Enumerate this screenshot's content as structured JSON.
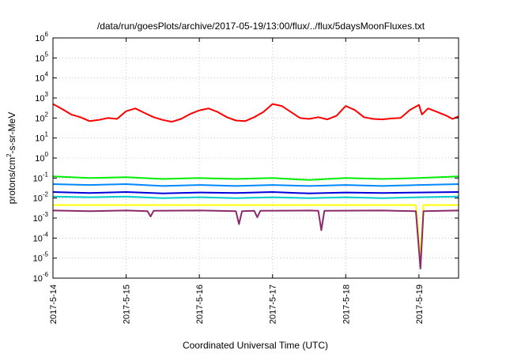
{
  "chart_data": {
    "type": "line",
    "title": "/data/run/goesPlots/archive/2017-05-19/13:00/flux/../flux/5daysMoonFluxes.txt",
    "xlabel": "Coordinated Universal Time (UTC)",
    "ylabel_parts": [
      "protons/cm",
      "2",
      "-s-sr-MeV"
    ],
    "y_scale": "log",
    "ylim": [
      1e-06,
      1000000.0
    ],
    "y_ticks": [
      {
        "value": 1e-06,
        "base": "10",
        "exp": "-6"
      },
      {
        "value": 1e-05,
        "base": "10",
        "exp": "-5"
      },
      {
        "value": 0.0001,
        "base": "10",
        "exp": "-4"
      },
      {
        "value": 0.001,
        "base": "10",
        "exp": "-3"
      },
      {
        "value": 0.01,
        "base": "10",
        "exp": "-2"
      },
      {
        "value": 0.1,
        "base": "10",
        "exp": "-1"
      },
      {
        "value": 1,
        "base": "10",
        "exp": "0"
      },
      {
        "value": 10,
        "base": "10",
        "exp": "1"
      },
      {
        "value": 100,
        "base": "10",
        "exp": "2"
      },
      {
        "value": 1000,
        "base": "10",
        "exp": "3"
      },
      {
        "value": 10000,
        "base": "10",
        "exp": "4"
      },
      {
        "value": 100000,
        "base": "10",
        "exp": "5"
      },
      {
        "value": 1000000,
        "base": "10",
        "exp": "6"
      }
    ],
    "xlim": [
      "2017-05-14T00:00",
      "2017-05-19T13:00"
    ],
    "x_ticks": [
      {
        "date": "2017-05-14T00:00",
        "label": "2017-5-14"
      },
      {
        "date": "2017-05-15T00:00",
        "label": "2017-5-15"
      },
      {
        "date": "2017-05-16T00:00",
        "label": "2017-5-16"
      },
      {
        "date": "2017-05-17T00:00",
        "label": "2017-5-17"
      },
      {
        "date": "2017-05-18T00:00",
        "label": "2017-5-18"
      },
      {
        "date": "2017-05-19T00:00",
        "label": "2017-5-19"
      }
    ],
    "grid": true,
    "series": [
      {
        "color": "#ff0000",
        "points": [
          [
            "2017-05-14T00:00",
            500
          ],
          [
            "2017-05-14T03:00",
            280
          ],
          [
            "2017-05-14T06:00",
            150
          ],
          [
            "2017-05-14T09:00",
            110
          ],
          [
            "2017-05-14T12:00",
            70
          ],
          [
            "2017-05-14T15:00",
            80
          ],
          [
            "2017-05-14T18:00",
            100
          ],
          [
            "2017-05-14T21:00",
            90
          ],
          [
            "2017-05-15T00:00",
            220
          ],
          [
            "2017-05-15T03:00",
            300
          ],
          [
            "2017-05-15T06:00",
            180
          ],
          [
            "2017-05-15T09:00",
            110
          ],
          [
            "2017-05-15T12:00",
            80
          ],
          [
            "2017-05-15T15:00",
            65
          ],
          [
            "2017-05-15T18:00",
            90
          ],
          [
            "2017-05-15T21:00",
            160
          ],
          [
            "2017-05-16T00:00",
            240
          ],
          [
            "2017-05-16T03:00",
            300
          ],
          [
            "2017-05-16T06:00",
            200
          ],
          [
            "2017-05-16T09:00",
            110
          ],
          [
            "2017-05-16T12:00",
            75
          ],
          [
            "2017-05-16T15:00",
            70
          ],
          [
            "2017-05-16T18:00",
            110
          ],
          [
            "2017-05-16T21:00",
            200
          ],
          [
            "2017-05-17T00:00",
            500
          ],
          [
            "2017-05-17T03:00",
            400
          ],
          [
            "2017-05-17T06:00",
            200
          ],
          [
            "2017-05-17T09:00",
            100
          ],
          [
            "2017-05-17T12:00",
            90
          ],
          [
            "2017-05-17T15:00",
            110
          ],
          [
            "2017-05-17T18:00",
            85
          ],
          [
            "2017-05-17T21:00",
            130
          ],
          [
            "2017-05-18T00:00",
            400
          ],
          [
            "2017-05-18T03:00",
            250
          ],
          [
            "2017-05-18T06:00",
            110
          ],
          [
            "2017-05-18T09:00",
            90
          ],
          [
            "2017-05-18T12:00",
            85
          ],
          [
            "2017-05-18T15:00",
            95
          ],
          [
            "2017-05-18T18:00",
            100
          ],
          [
            "2017-05-18T21:00",
            250
          ],
          [
            "2017-05-19T00:00",
            450
          ],
          [
            "2017-05-19T01:00",
            150
          ],
          [
            "2017-05-19T03:00",
            300
          ],
          [
            "2017-05-19T06:00",
            200
          ],
          [
            "2017-05-19T09:00",
            130
          ],
          [
            "2017-05-19T11:00",
            90
          ],
          [
            "2017-05-19T13:00",
            120
          ]
        ]
      },
      {
        "color": "#00ee00",
        "points": [
          [
            "2017-05-14T00:00",
            0.12
          ],
          [
            "2017-05-14T12:00",
            0.1
          ],
          [
            "2017-05-15T00:00",
            0.11
          ],
          [
            "2017-05-15T12:00",
            0.09
          ],
          [
            "2017-05-16T00:00",
            0.1
          ],
          [
            "2017-05-16T12:00",
            0.09
          ],
          [
            "2017-05-17T00:00",
            0.1
          ],
          [
            "2017-05-17T12:00",
            0.08
          ],
          [
            "2017-05-18T00:00",
            0.1
          ],
          [
            "2017-05-18T12:00",
            0.09
          ],
          [
            "2017-05-19T00:00",
            0.1
          ],
          [
            "2017-05-19T13:00",
            0.12
          ]
        ]
      },
      {
        "color": "#0088ff",
        "points": [
          [
            "2017-05-14T00:00",
            0.05
          ],
          [
            "2017-05-14T12:00",
            0.045
          ],
          [
            "2017-05-15T00:00",
            0.05
          ],
          [
            "2017-05-15T12:00",
            0.04
          ],
          [
            "2017-05-16T00:00",
            0.045
          ],
          [
            "2017-05-16T12:00",
            0.04
          ],
          [
            "2017-05-17T00:00",
            0.045
          ],
          [
            "2017-05-17T12:00",
            0.04
          ],
          [
            "2017-05-18T00:00",
            0.045
          ],
          [
            "2017-05-18T12:00",
            0.04
          ],
          [
            "2017-05-19T00:00",
            0.045
          ],
          [
            "2017-05-19T13:00",
            0.05
          ]
        ]
      },
      {
        "color": "#00cccc",
        "points": [
          [
            "2017-05-14T00:00",
            0.012
          ],
          [
            "2017-05-14T12:00",
            0.011
          ],
          [
            "2017-05-15T00:00",
            0.012
          ],
          [
            "2017-05-15T12:00",
            0.01
          ],
          [
            "2017-05-16T00:00",
            0.011
          ],
          [
            "2017-05-16T12:00",
            0.01
          ],
          [
            "2017-05-17T00:00",
            0.011
          ],
          [
            "2017-05-17T12:00",
            0.01
          ],
          [
            "2017-05-18T00:00",
            0.011
          ],
          [
            "2017-05-18T12:00",
            0.01
          ],
          [
            "2017-05-19T00:00",
            0.011
          ],
          [
            "2017-05-19T13:00",
            0.012
          ]
        ]
      },
      {
        "color": "#0000dd",
        "points": [
          [
            "2017-05-14T00:00",
            0.02
          ],
          [
            "2017-05-14T12:00",
            0.018
          ],
          [
            "2017-05-15T00:00",
            0.02
          ],
          [
            "2017-05-15T12:00",
            0.017
          ],
          [
            "2017-05-16T00:00",
            0.019
          ],
          [
            "2017-05-16T12:00",
            0.018
          ],
          [
            "2017-05-17T00:00",
            0.02
          ],
          [
            "2017-05-17T12:00",
            0.017
          ],
          [
            "2017-05-18T00:00",
            0.019
          ],
          [
            "2017-05-18T12:00",
            0.018
          ],
          [
            "2017-05-19T00:00",
            0.019
          ],
          [
            "2017-05-19T13:00",
            0.02
          ]
        ]
      },
      {
        "color": "#ffff00",
        "points": [
          [
            "2017-05-14T00:00",
            0.0045
          ],
          [
            "2017-05-15T00:00",
            0.0045
          ],
          [
            "2017-05-16T00:00",
            0.0045
          ],
          [
            "2017-05-17T00:00",
            0.0045
          ],
          [
            "2017-05-18T00:00",
            0.0045
          ],
          [
            "2017-05-18T23:00",
            0.0045
          ],
          [
            "2017-05-19T00:30",
            1e-05
          ],
          [
            "2017-05-19T01:30",
            0.0045
          ],
          [
            "2017-05-19T13:00",
            0.0045
          ]
        ]
      },
      {
        "color": "#8b2a6b",
        "points": [
          [
            "2017-05-14T00:00",
            0.0024
          ],
          [
            "2017-05-14T12:00",
            0.0022
          ],
          [
            "2017-05-15T00:00",
            0.0024
          ],
          [
            "2017-05-15T07:00",
            0.0022
          ],
          [
            "2017-05-15T08:00",
            0.0012
          ],
          [
            "2017-05-15T09:00",
            0.0023
          ],
          [
            "2017-05-16T00:00",
            0.0024
          ],
          [
            "2017-05-16T12:00",
            0.0022
          ],
          [
            "2017-05-16T13:00",
            0.0005
          ],
          [
            "2017-05-16T14:00",
            0.0022
          ],
          [
            "2017-05-16T18:00",
            0.0023
          ],
          [
            "2017-05-16T19:00",
            0.0011
          ],
          [
            "2017-05-16T20:00",
            0.0023
          ],
          [
            "2017-05-17T12:00",
            0.0024
          ],
          [
            "2017-05-17T15:00",
            0.0023
          ],
          [
            "2017-05-17T16:00",
            0.00025
          ],
          [
            "2017-05-17T17:00",
            0.0023
          ],
          [
            "2017-05-18T12:00",
            0.0024
          ],
          [
            "2017-05-18T23:00",
            0.0022
          ],
          [
            "2017-05-19T00:30",
            3e-06
          ],
          [
            "2017-05-19T01:30",
            0.0022
          ],
          [
            "2017-05-19T13:00",
            0.0024
          ]
        ]
      }
    ]
  }
}
